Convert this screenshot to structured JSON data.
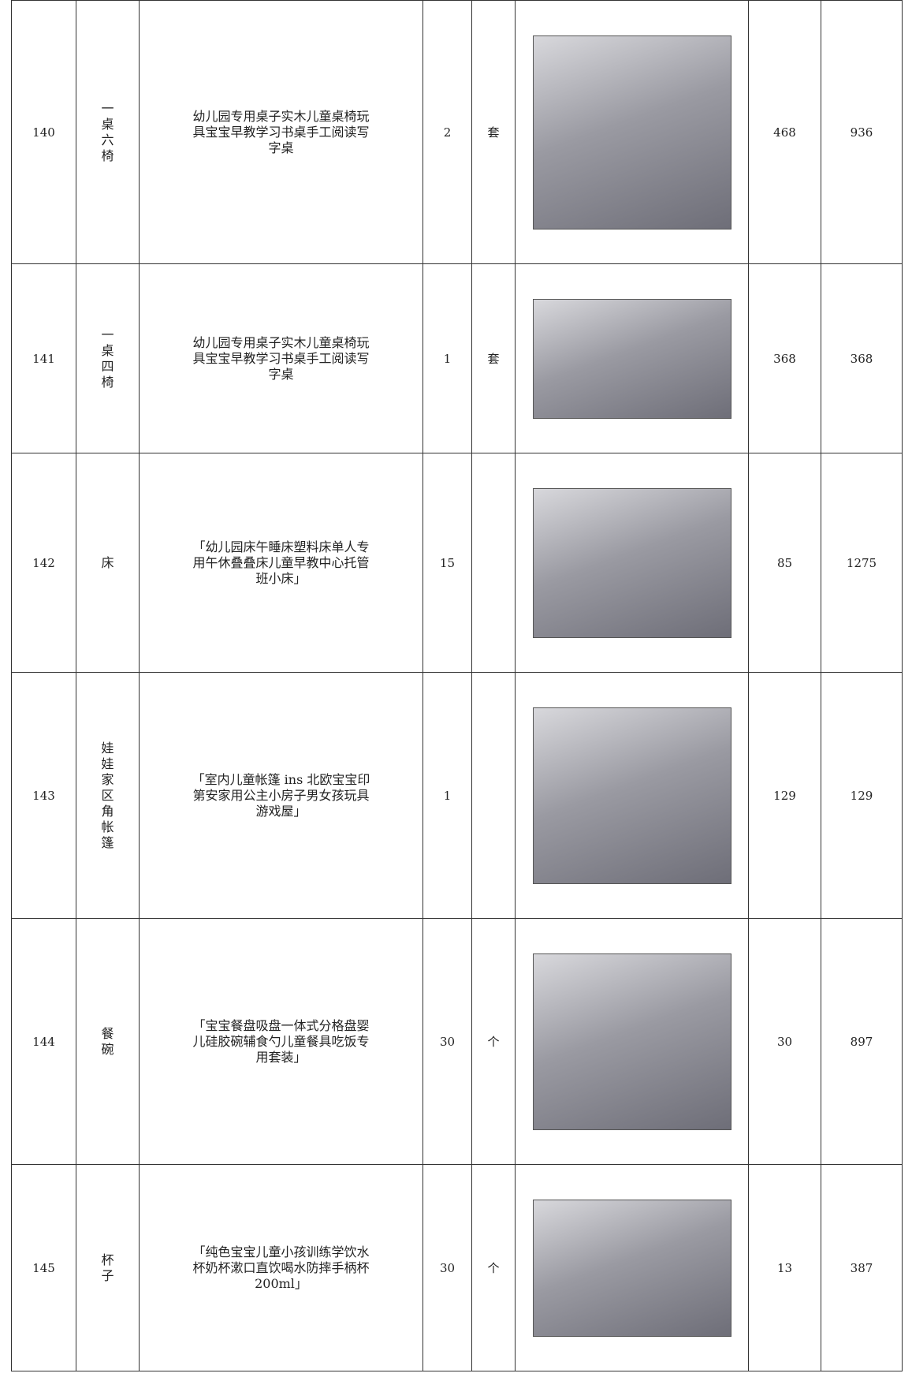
{
  "table": {
    "rows": [
      {
        "no": 140,
        "name": "一桌六椅",
        "description": "幼儿园专用桌子实木儿童桌椅玩具宝宝早教学习书桌手工阅读写字桌",
        "quantity": 2,
        "unit": "套",
        "price": 468,
        "total": 936
      },
      {
        "no": 141,
        "name": "一桌四椅",
        "description": "幼儿园专用桌子实木儿童桌椅玩具宝宝早教学习书桌手工阅读写字桌",
        "quantity": 1,
        "unit": "套",
        "price": 368,
        "total": 368
      },
      {
        "no": 142,
        "name": "床",
        "description": "「幼儿园床午睡床塑料床单人专用午休叠叠床儿童早教中心托管班小床」",
        "quantity": 15,
        "price": 85,
        "total": 1275
      },
      {
        "no": 143,
        "name": "娃娃家区角帐篷",
        "description": "「室内儿童帐篷 ins 北欧宝宝印第安家用公主小房子男女孩玩具游戏屋」",
        "quantity": 1,
        "price": 129,
        "total": 129
      },
      {
        "no": 144,
        "name": "餐碗",
        "description": "「宝宝餐盘吸盘一体式分格盘婴儿硅胶碗辅食勺儿童餐具吃饭专用套装」",
        "quantity": 30,
        "unit": "个",
        "price": 30,
        "total": 897
      },
      {
        "no": 145,
        "name": "杯子",
        "description": "「纯色宝宝儿童小孩训练学饮水杯奶杯漱口直饮喝水防摔手柄杯200ml」",
        "quantity": 30,
        "unit": "个",
        "price": 13,
        "total": 387
      }
    ]
  }
}
